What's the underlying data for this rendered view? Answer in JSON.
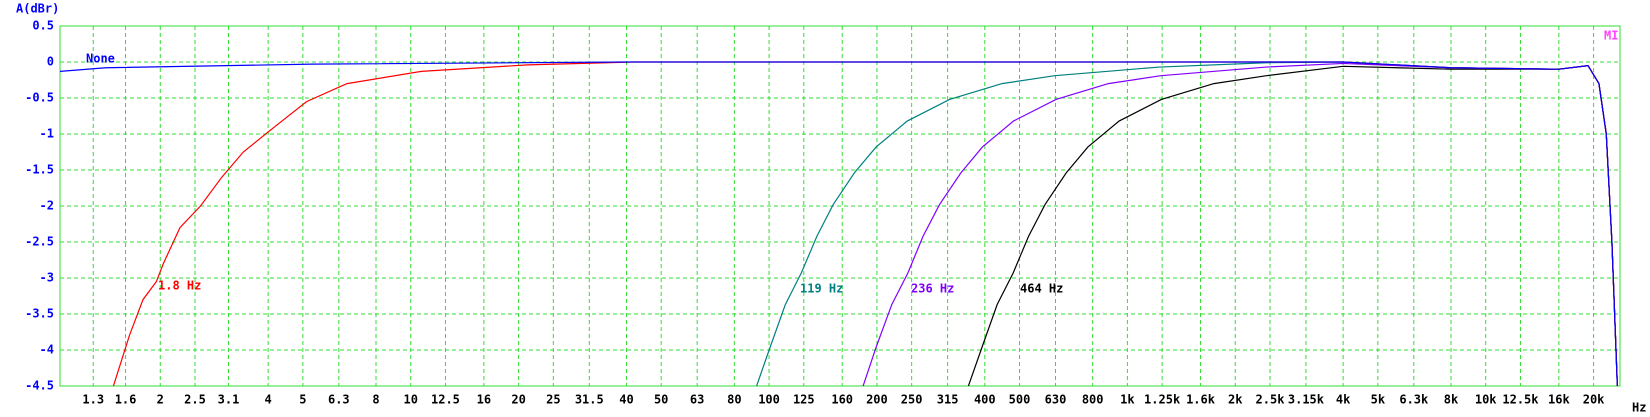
{
  "chart_data": {
    "type": "line",
    "y_label": "A(dBr)",
    "x_label": "Hz",
    "logo": "MI",
    "log_x": true,
    "grid": true,
    "xlim": [
      1.05,
      23700
    ],
    "ylim": [
      -4.5,
      0.5
    ],
    "yticks": [
      -4.5,
      -4,
      -3.5,
      -3,
      -2.5,
      -2,
      -1.5,
      -1,
      -0.5,
      0,
      0.5
    ],
    "xticks": [
      1.3,
      1.6,
      2,
      2.5,
      3.1,
      4,
      5,
      6.3,
      8,
      10,
      12.5,
      16,
      20,
      25,
      31.5,
      40,
      50,
      63,
      80,
      100,
      125,
      160,
      200,
      250,
      315,
      400,
      500,
      630,
      800,
      {
        "value": 1000,
        "label": "1k"
      },
      {
        "value": 1250,
        "label": "1.25k"
      },
      {
        "value": 1600,
        "label": "1.6k"
      },
      {
        "value": 2000,
        "label": "2k"
      },
      {
        "value": 2500,
        "label": "2.5k"
      },
      {
        "value": 3150,
        "label": "3.15k"
      },
      {
        "value": 4000,
        "label": "4k"
      },
      {
        "value": 5000,
        "label": "5k"
      },
      {
        "value": 6300,
        "label": "6.3k"
      },
      {
        "value": 8000,
        "label": "8k"
      },
      {
        "value": 10000,
        "label": "10k"
      },
      {
        "value": 12500,
        "label": "12.5k"
      },
      {
        "value": 16000,
        "label": "16k"
      },
      {
        "value": 20000,
        "label": "20k"
      }
    ],
    "series": [
      {
        "name": "119 Hz",
        "color": "#008080",
        "x": [
          92.3,
          100.7,
          111,
          123,
          136,
          151,
          173,
          199,
          243,
          319,
          447,
          627,
          1230,
          2437,
          4000,
          8000,
          16000,
          19300,
          20700,
          21700,
          22500,
          23300
        ],
        "values": [
          -4.5,
          -3.96,
          -3.37,
          -2.93,
          -2.42,
          -1.98,
          -1.54,
          -1.18,
          -0.82,
          -0.52,
          -0.3,
          -0.19,
          -0.07,
          -0.01,
          0,
          -0.08,
          -0.1,
          -0.05,
          -0.3,
          -1.0,
          -2.5,
          -4.5
        ]
      },
      {
        "name": "236 Hz",
        "color": "#8000ff",
        "x": [
          183,
          199,
          220,
          244,
          269,
          299,
          343,
          394,
          481,
          632,
          885,
          1240,
          2440,
          4000,
          8000,
          16000,
          19300,
          20700,
          21700,
          22500,
          23300
        ],
        "values": [
          -4.5,
          -3.96,
          -3.37,
          -2.93,
          -2.42,
          -1.98,
          -1.54,
          -1.18,
          -0.82,
          -0.52,
          -0.3,
          -0.19,
          -0.07,
          -0.02,
          -0.08,
          -0.1,
          -0.05,
          -0.3,
          -1.0,
          -2.5,
          -4.5
        ]
      },
      {
        "name": "464 Hz",
        "color": "#000000",
        "x": [
          360,
          393,
          433,
          480,
          530,
          589,
          675,
          776,
          948,
          1244,
          1743,
          2445,
          4000,
          8000,
          16000,
          19300,
          20700,
          21700,
          22500,
          23300
        ],
        "values": [
          -4.5,
          -3.96,
          -3.37,
          -2.93,
          -2.42,
          -1.98,
          -1.54,
          -1.18,
          -0.82,
          -0.52,
          -0.3,
          -0.19,
          -0.06,
          -0.1,
          -0.1,
          -0.05,
          -0.3,
          -1.0,
          -2.5,
          -4.5
        ]
      },
      {
        "name": "1.8 Hz",
        "color": "#ff0000",
        "x": [
          1.48,
          1.64,
          1.79,
          1.95,
          2.04,
          2.27,
          2.59,
          2.97,
          3.41,
          4.17,
          5.12,
          6.64,
          10.7,
          21.2,
          41.9,
          4000,
          8000,
          16000,
          19300,
          20700,
          21700,
          22500,
          23300
        ],
        "values": [
          -4.5,
          -3.8,
          -3.3,
          -3.05,
          -2.8,
          -2.3,
          -2.0,
          -1.6,
          -1.25,
          -0.9,
          -0.55,
          -0.3,
          -0.13,
          -0.04,
          0,
          0,
          -0.08,
          -0.1,
          -0.05,
          -0.3,
          -1.0,
          -2.5,
          -4.5
        ]
      },
      {
        "name": "None",
        "color": "#0000ff",
        "x": [
          1.05,
          1.41,
          5.3,
          40,
          4000,
          8000,
          16000,
          19300,
          20700,
          21700,
          22500,
          23300
        ],
        "values": [
          -0.13,
          -0.08,
          -0.03,
          0,
          0,
          -0.08,
          -0.1,
          -0.05,
          -0.3,
          -1.0,
          -2.5,
          -4.5
        ]
      }
    ]
  }
}
